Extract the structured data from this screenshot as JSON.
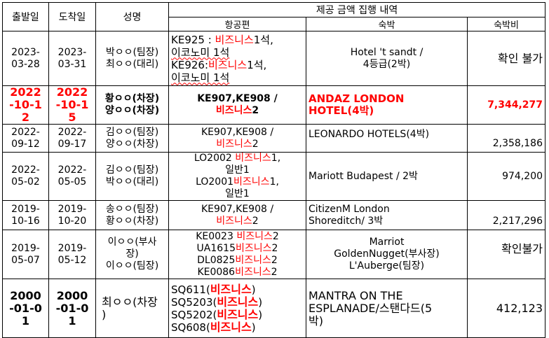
{
  "headers": {
    "departure": "출발일",
    "arrival": "도착일",
    "name": "성명",
    "group": "제공 금액 집행 내역",
    "flight": "항공편",
    "hotel": "숙박",
    "cost": "숙박비"
  },
  "rows": [
    {
      "dep": "2023-03-28",
      "arr": "2023-03-31",
      "names": [
        "박ㅇㅇ(팀장)",
        "최ㅇㅇ(대리)"
      ],
      "flight": [
        {
          "plain": "KE925 : ",
          "red": "비즈니스",
          "after": "1석,"
        },
        {
          "plain": "이코노미 1석",
          "red": "",
          "after": ""
        },
        {
          "plain": "KE926:",
          "red": "비즈니스",
          "after": "1석,"
        },
        {
          "plain": "이코노미 1석",
          "red": "",
          "after": ""
        }
      ],
      "hotel": [
        "Hotel 't sandt /",
        "4등급(2박)"
      ],
      "cost": "확인 불가"
    },
    {
      "dep": "2022-10-12",
      "arr": "2022-10-15",
      "names": [
        "황ㅇㅇ(차장)",
        "양ㅇㅇ(차장)"
      ],
      "flight": [
        {
          "plain": "KE907,KE908 /",
          "red": "",
          "after": ""
        },
        {
          "plain": "",
          "red": "비즈니스",
          "after": "2"
        }
      ],
      "hotel": [
        "ANDAZ LONDON",
        "HOTEL(4박)"
      ],
      "cost": "7,344,277"
    },
    {
      "dep": "2022-09-12",
      "arr": "2022-09-17",
      "names": [
        "김ㅇㅇ(팀장)",
        "양ㅇㅇ(차장)"
      ],
      "flight": [
        {
          "plain": "KE907,KE908 /",
          "red": "",
          "after": ""
        },
        {
          "plain": "",
          "red": "비즈니스",
          "after": "2"
        }
      ],
      "hotel": [
        "LEONARDO HOTELS(4박)"
      ],
      "cost": "2,358,186"
    },
    {
      "dep": "2022-05-02",
      "arr": "2022-05-05",
      "names": [
        "김ㅇㅇ(팀장)",
        "박ㅇㅇ(대리)"
      ],
      "flight": [
        {
          "plain": "LO2002 ",
          "red": "비즈니스",
          "after": "1,"
        },
        {
          "plain": "일반1",
          "red": "",
          "after": ""
        },
        {
          "plain": "LO2001",
          "red": "비즈니스",
          "after": "1,"
        },
        {
          "plain": "일반1",
          "red": "",
          "after": ""
        }
      ],
      "hotel": [
        "Mariott Budapest / 2박"
      ],
      "cost": "974,200"
    },
    {
      "dep": "2019-10-16",
      "arr": "2019-10-20",
      "names": [
        "송ㅇㅇ(팀장)",
        "황ㅇㅇ(차장)"
      ],
      "flight": [
        {
          "plain": "KE907,KE908 /",
          "red": "",
          "after": ""
        },
        {
          "plain": "",
          "red": "비즈니스",
          "after": "2"
        }
      ],
      "hotel": [
        "CitizenM London",
        "Shoreditch/ 3박"
      ],
      "cost": "2,217,296"
    },
    {
      "dep": "2019-05-07",
      "arr": "2019-05-12",
      "names": [
        "이ㅇㅇ(부사",
        "장)",
        "이ㅇㅇ(팀장)"
      ],
      "flight": [
        {
          "plain": "KE0023 ",
          "red": "비즈니스",
          "after": "2"
        },
        {
          "plain": "UA1615",
          "red": "비즈니스",
          "after": "2"
        },
        {
          "plain": "DL0825",
          "red": "비즈니스",
          "after": "2"
        },
        {
          "plain": "KE0086",
          "red": "비즈니스",
          "after": "2"
        }
      ],
      "hotel": [
        "Marriot",
        "GoldenNugget(부사장)",
        "L'Auberge(팀장)"
      ],
      "cost": "확인불가"
    },
    {
      "dep": "2000-01-01",
      "arr": "2000-01-01",
      "names": [
        "최ㅇㅇ(차장",
        ")"
      ],
      "flight": [
        {
          "plain": "SQ611(",
          "red": "비즈니스",
          "after": ")"
        },
        {
          "plain": "SQ5203(",
          "red": "비즈니스",
          "after": ")"
        },
        {
          "plain": "SQ5202(",
          "red": "비즈니스",
          "after": ")"
        },
        {
          "plain": "SQ608(",
          "red": "비즈니스",
          "after": ")"
        }
      ],
      "hotel": [
        "MANTRA ON THE",
        "ESPLANADE/스탠다드(5",
        "박)"
      ],
      "cost": "412,123"
    }
  ]
}
